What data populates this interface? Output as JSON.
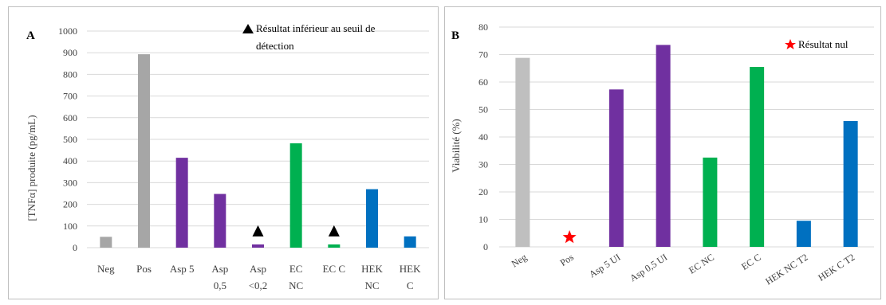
{
  "chart_data": [
    {
      "type": "bar",
      "panel_label": "A",
      "ylabel": "[TNFα] produite (pg/mL)",
      "ylim": [
        0,
        1000
      ],
      "yticks": [
        0,
        100,
        200,
        300,
        400,
        500,
        600,
        700,
        800,
        900,
        1000
      ],
      "grid": true,
      "categories": [
        [
          "Neg"
        ],
        [
          "Pos"
        ],
        [
          "Asp 5"
        ],
        [
          "Asp",
          "0,5"
        ],
        [
          "Asp",
          "<0,2"
        ],
        [
          "EC",
          "NC"
        ],
        [
          "EC C"
        ],
        [
          "HEK",
          "NC"
        ],
        [
          "HEK",
          "C"
        ]
      ],
      "values": [
        50,
        893,
        415,
        248,
        15,
        482,
        15,
        270,
        52
      ],
      "colors": [
        "#a6a6a6",
        "#a6a6a6",
        "#7030a0",
        "#7030a0",
        "#7030a0",
        "#00b050",
        "#00b050",
        "#0070c0",
        "#0070c0"
      ],
      "below_detection": [
        false,
        false,
        false,
        false,
        true,
        false,
        true,
        false,
        false
      ],
      "legend": {
        "marker": "black-triangle-icon",
        "text": [
          "Résultat inférieur au seuil de",
          "détection"
        ],
        "position": "top-right"
      }
    },
    {
      "type": "bar",
      "panel_label": "B",
      "ylabel": "Viabilité (%)",
      "ylim": [
        0,
        80
      ],
      "yticks": [
        0,
        10,
        20,
        30,
        40,
        50,
        60,
        70,
        80
      ],
      "grid": true,
      "categories": [
        "Neg",
        "Pos",
        "Asp 5 UI",
        "Asp 0,5 UI",
        "EC NC",
        "EC C",
        "HEK NC T2",
        "HEK C T2"
      ],
      "values": [
        68.8,
        0,
        57.3,
        73.5,
        32.5,
        65.5,
        9.5,
        45.8
      ],
      "colors": [
        "#bfbfbf",
        "#bfbfbf",
        "#7030a0",
        "#7030a0",
        "#00b050",
        "#00b050",
        "#0070c0",
        "#0070c0"
      ],
      "null_result": [
        false,
        true,
        false,
        false,
        false,
        false,
        false,
        false
      ],
      "legend": {
        "marker": "red-star-icon",
        "text": "Résultat nul",
        "position": "top-right"
      }
    }
  ]
}
